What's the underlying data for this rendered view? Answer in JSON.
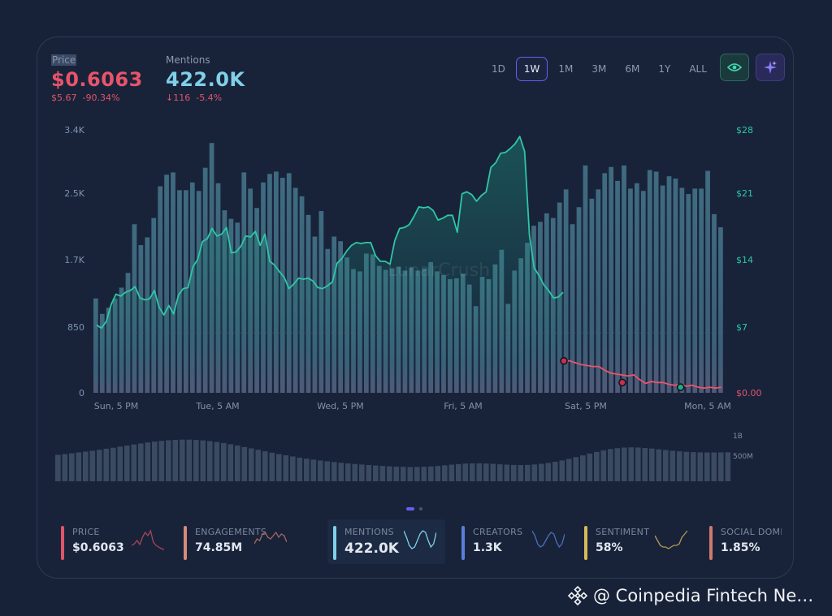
{
  "header": {
    "price": {
      "label": "Price",
      "value": "$0.6063",
      "sub1": "$5.67",
      "sub2": "-90.34%"
    },
    "mentions": {
      "label": "Mentions",
      "value": "422.0K",
      "sub1": "↓116",
      "sub2": "-5.4%"
    }
  },
  "ranges": [
    "1D",
    "1W",
    "1M",
    "3M",
    "6M",
    "1Y",
    "ALL"
  ],
  "active_range": "1W",
  "icons": {
    "view": "eye-icon",
    "ai": "sparkle-icon"
  },
  "colors": {
    "accent": "#6b5cf0",
    "price": "#e8546b",
    "mentions": "#7fd0e8",
    "line": "#2fc7a5",
    "bars": "#3f6178",
    "volume": "#3a4a60"
  },
  "chart_data": {
    "type": "bar",
    "left_axis": {
      "ticks": [
        "3.4K",
        "2.5K",
        "1.7K",
        "850",
        "0"
      ],
      "range": [
        0,
        3400
      ]
    },
    "right_axis": {
      "ticks": [
        "$28",
        "$21",
        "$14",
        "$7",
        "$0.00"
      ],
      "range": [
        0,
        28
      ]
    },
    "x_labels": [
      "Sun, 5 PM",
      "Tue, 5 AM",
      "Wed, 5 PM",
      "Fri, 5 AM",
      "Sat, 5 PM",
      "Mon, 5 AM"
    ],
    "series": [
      {
        "name": "Mentions",
        "type": "bar",
        "values": [
          1220,
          1020,
          1100,
          1220,
          1360,
          1550,
          2180,
          1910,
          2010,
          2260,
          2670,
          2820,
          2850,
          2620,
          2620,
          2720,
          2610,
          2910,
          3230,
          2710,
          2360,
          2250,
          2200,
          2850,
          2640,
          2390,
          2720,
          2830,
          2860,
          2780,
          2840,
          2650,
          2540,
          2300,
          2020,
          2350,
          1860,
          2020,
          1960,
          1750,
          1600,
          1570,
          1800,
          1790,
          1640,
          1590,
          1610,
          1630,
          1580,
          1620,
          1580,
          1610,
          1690,
          1570,
          1520,
          1470,
          1480,
          1540,
          1400,
          1120,
          1500,
          1470,
          1660,
          1850,
          1150,
          1580,
          1740,
          1940,
          2160,
          2210,
          2320,
          2260,
          2460,
          2630,
          2180,
          2400,
          2940,
          2510,
          2630,
          2840,
          2920,
          2740,
          2940,
          2640,
          2710,
          2610,
          2880,
          2860,
          2680,
          2800,
          2770,
          2650,
          2570,
          2640,
          2640,
          2870,
          2310,
          2140
        ],
        "line_values": [
          7.2,
          6.9,
          7.6,
          9.4,
          10.5,
          10.3,
          10.7,
          10.9,
          11.3,
          10.1,
          9.9,
          10.0,
          10.9,
          9.1,
          8.3,
          9.3,
          8.4,
          10.4,
          11.1,
          11.2,
          13.4,
          14.2,
          16.1,
          16.4,
          17.5,
          16.7,
          16.9,
          17.6,
          14.9,
          15.0,
          15.6,
          16.7,
          16.6,
          17.2,
          15.7,
          16.9,
          14.0,
          13.6,
          12.9,
          12.3,
          11.1,
          11.6,
          12.2,
          12.1,
          12.2,
          11.9,
          11.2,
          11.1,
          11.4,
          11.8,
          13.8,
          14.3,
          15.1,
          15.7,
          16.0,
          15.9,
          16.0,
          16.0,
          14.6,
          14.0,
          14.0,
          13.7,
          16.2,
          17.5,
          17.6,
          17.9,
          18.8,
          19.8,
          19.7,
          19.8,
          19.4,
          18.4,
          18.6,
          18.9,
          18.9,
          17.1,
          21.2,
          21.4,
          21.1,
          20.4,
          21.0,
          21.4,
          24.0,
          24.5,
          25.5,
          25.6,
          26.0,
          26.5,
          27.3,
          25.7,
          16.8,
          13.3,
          12.5,
          11.5,
          10.9,
          10.1,
          10.2,
          10.7
        ]
      },
      {
        "name": "Price",
        "type": "line",
        "unit": "$",
        "values": [
          3.4,
          3.4,
          3.2,
          3.0,
          2.9,
          2.8,
          2.8,
          2.4,
          2.1,
          2.0,
          1.9,
          1.8,
          1.9,
          1.4,
          1.0,
          1.2,
          1.1,
          1.1,
          0.9,
          0.8,
          0.9,
          0.7,
          0.8,
          0.6,
          0.5,
          0.6,
          0.5,
          0.6
        ]
      }
    ],
    "markers": [
      {
        "series": "Price",
        "color": "red",
        "value": 3.4
      },
      {
        "series": "Price",
        "color": "red",
        "value": 1.1
      },
      {
        "series": "Price",
        "color": "green",
        "value": 0.6
      }
    ],
    "volume": {
      "ticks": [
        "1B",
        "500M"
      ]
    },
    "watermark": "LunarCrush"
  },
  "metric_cards": [
    {
      "label": "PRICE",
      "value": "$0.6063",
      "color": "#e0556a"
    },
    {
      "label": "ENGAGEMENTS",
      "value": "74.85M",
      "color": "#d88a7a"
    },
    {
      "label": "MENTIONS",
      "value": "422.0K",
      "color": "#7fd0e8"
    },
    {
      "label": "CREATORS",
      "value": "1.3K",
      "color": "#5b7fd8"
    },
    {
      "label": "SENTIMENT",
      "value": "58%",
      "color": "#d8b85a"
    },
    {
      "label": "SOCIAL DOMINANCE",
      "value": "1.85%",
      "color": "#d07a6a"
    }
  ],
  "credit": {
    "text": "@ Coinpedia Fintech Ne…",
    "icon": "binance-diamond-icon"
  }
}
